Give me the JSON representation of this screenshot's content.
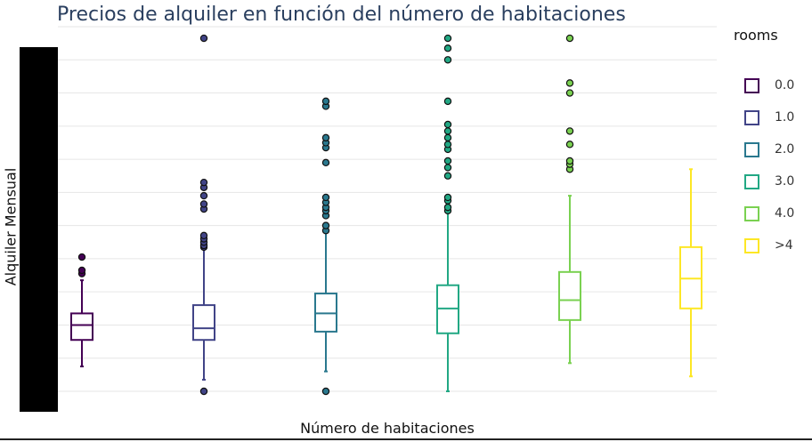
{
  "chart_data": {
    "type": "box",
    "title": "Precios de alquiler en función del número de habitaciones",
    "xlabel": "Número de habitaciones",
    "ylabel": "Alquiler Mensual",
    "ylim": [
      0,
      11
    ],
    "y_ticks": [
      0,
      1,
      2,
      3,
      4,
      5,
      6,
      7,
      8,
      9,
      10,
      11
    ],
    "y_tick_labels_visible": false,
    "grid": true,
    "legend": {
      "title": "rooms",
      "placement": "right",
      "entries": [
        "0.0",
        "1.0",
        "2.0",
        "3.0",
        "4.0",
        ">4"
      ]
    },
    "categories": [
      "0.0",
      "1.0",
      "2.0",
      "3.0",
      "4.0",
      ">4"
    ],
    "series": [
      {
        "name": "0.0",
        "color": "#440154",
        "min": 0.75,
        "q1": 1.55,
        "median": 2.0,
        "q3": 2.35,
        "max": 3.35,
        "outliers": [
          3.55,
          3.65,
          4.05
        ]
      },
      {
        "name": "1.0",
        "color": "#414487",
        "min": 0.35,
        "q1": 1.55,
        "median": 1.9,
        "q3": 2.6,
        "max": 4.3,
        "outliers": [
          0.0,
          4.35,
          4.4,
          4.5,
          4.6,
          4.7,
          5.5,
          5.65,
          5.9,
          6.15,
          6.3,
          10.65
        ]
      },
      {
        "name": "2.0",
        "color": "#2a788e",
        "min": 0.6,
        "q1": 1.8,
        "median": 2.35,
        "q3": 2.95,
        "max": 4.95,
        "outliers": [
          0.0,
          4.85,
          5.0,
          5.3,
          5.45,
          5.55,
          5.7,
          5.85,
          6.9,
          7.35,
          7.5,
          7.65,
          8.6,
          8.75
        ]
      },
      {
        "name": "3.0",
        "color": "#22a884",
        "min": 0.0,
        "q1": 1.75,
        "median": 2.5,
        "q3": 3.2,
        "max": 5.75,
        "outliers": [
          5.45,
          5.55,
          5.75,
          5.85,
          6.5,
          6.75,
          6.95,
          7.3,
          7.45,
          7.65,
          7.85,
          8.05,
          8.75,
          10.0,
          10.35,
          10.65
        ]
      },
      {
        "name": "4.0",
        "color": "#7ad151",
        "min": 0.85,
        "q1": 2.15,
        "median": 2.75,
        "q3": 3.6,
        "max": 5.9,
        "outliers": [
          6.7,
          6.85,
          6.95,
          7.45,
          7.85,
          9.0,
          9.3,
          10.65
        ]
      },
      {
        "name": ">4",
        "color": "#fde725",
        "min": 0.45,
        "q1": 2.5,
        "median": 3.4,
        "q3": 4.35,
        "max": 6.7,
        "outliers": []
      }
    ]
  }
}
